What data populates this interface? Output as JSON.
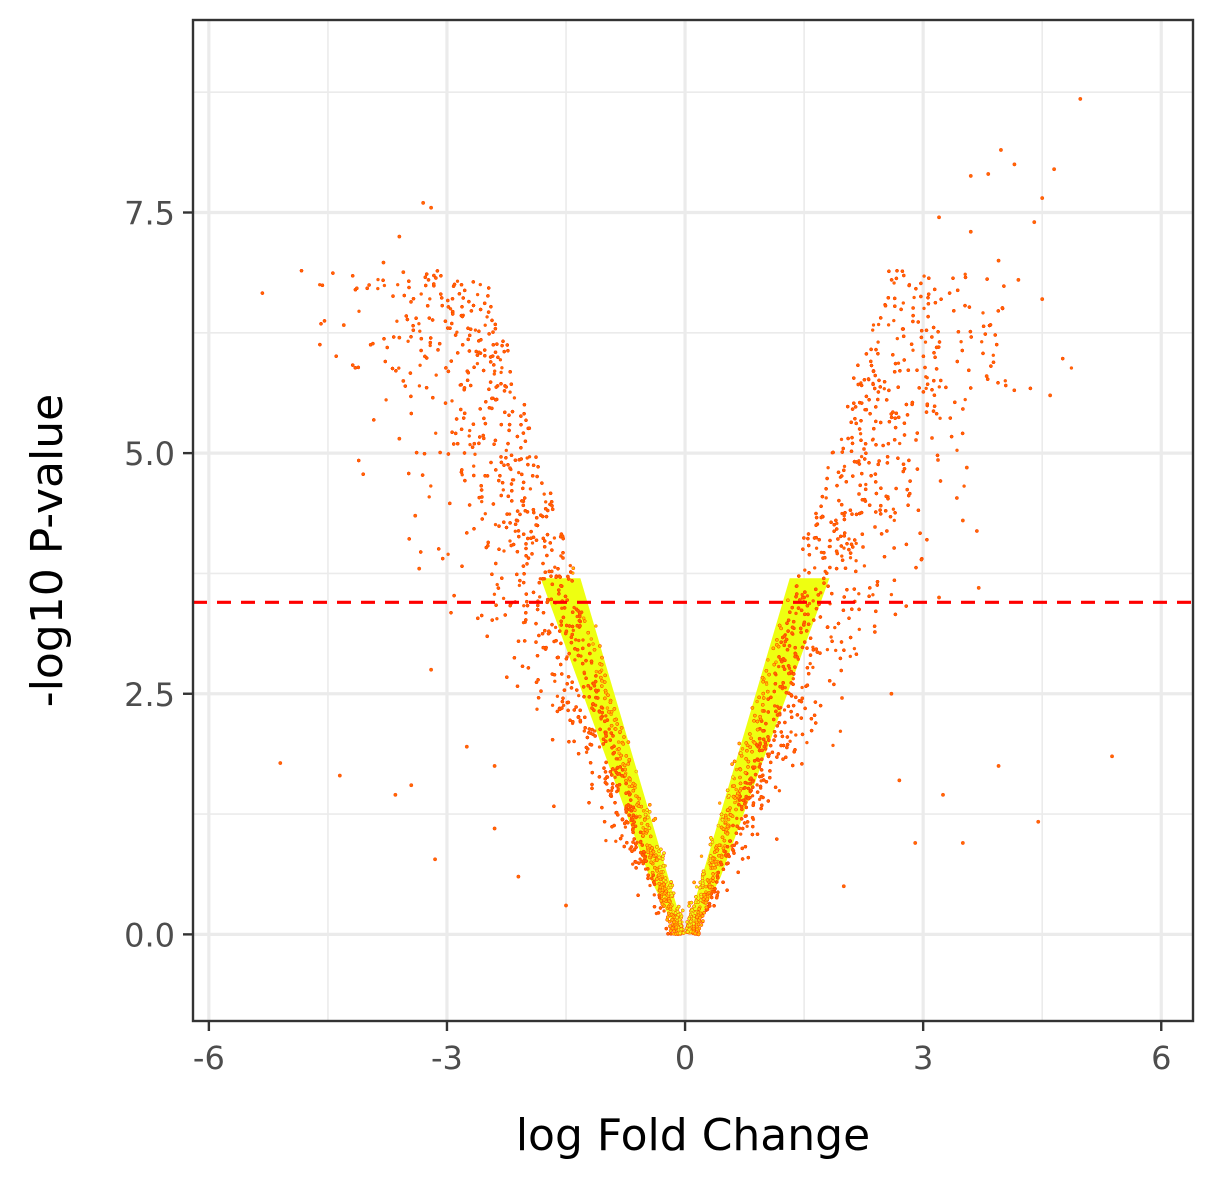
{
  "chart_data": {
    "type": "scatter",
    "title": "",
    "xlabel": "log Fold Change",
    "ylabel": "-log10 P-value",
    "xlim": [
      -6.2,
      6.4
    ],
    "ylim": [
      -0.9,
      9.5
    ],
    "x_ticks": [
      -6,
      -3,
      0,
      3,
      6
    ],
    "x_tick_labels": [
      "-6",
      "-3",
      "0",
      "3",
      "6"
    ],
    "y_ticks": [
      0.0,
      2.5,
      5.0,
      7.5
    ],
    "y_tick_labels": [
      "0.0",
      "2.5",
      "5.0",
      "7.5"
    ],
    "grid": true,
    "legend": "none",
    "threshold_line": {
      "y": 3.45,
      "style": "dashed",
      "color": "#ff0000"
    },
    "colors": {
      "low_density": "#ff6a00",
      "mid_density": "#ffc000",
      "high_density": "#eeff11",
      "point_outline": "#ff3300",
      "grid": "#ebebeb",
      "panel_border": "#333333"
    },
    "density_profile": {
      "description": "V-shaped volcano cloud, dense core |x| ≈ 0.37*y near origin, spread widening with y",
      "core_slope": 0.37,
      "left_max_y": 7.6,
      "right_max_y": 8.7
    },
    "series": [
      {
        "values_xy": [
          [
            -3.3,
            7.6
          ],
          [
            -3.2,
            7.55
          ],
          [
            -3.6,
            7.25
          ],
          [
            -3.8,
            6.98
          ],
          [
            -3.55,
            6.88
          ],
          [
            -4.3,
            6.33
          ],
          [
            -3.6,
            6.2
          ],
          [
            -3.55,
            5.75
          ],
          [
            -3.6,
            5.15
          ],
          [
            -3.4,
            4.35
          ],
          [
            -3.35,
            3.8
          ],
          [
            -3.2,
            2.75
          ],
          [
            -2.75,
            1.95
          ],
          [
            -5.1,
            1.78
          ],
          [
            -4.35,
            1.65
          ],
          [
            -3.65,
            1.45
          ],
          [
            -3.45,
            1.55
          ],
          [
            -3.15,
            0.78
          ],
          [
            -2.4,
            1.75
          ],
          [
            -2.4,
            1.1
          ],
          [
            4.98,
            8.68
          ],
          [
            3.98,
            8.15
          ],
          [
            4.15,
            8.0
          ],
          [
            4.65,
            7.95
          ],
          [
            3.6,
            7.88
          ],
          [
            3.82,
            7.9
          ],
          [
            4.5,
            7.65
          ],
          [
            4.4,
            7.4
          ],
          [
            3.2,
            7.45
          ],
          [
            3.6,
            7.3
          ],
          [
            3.95,
            7.0
          ],
          [
            4.5,
            6.6
          ],
          [
            4.2,
            6.8
          ],
          [
            4.6,
            5.6
          ],
          [
            3.8,
            5.8
          ],
          [
            3.55,
            4.85
          ],
          [
            3.5,
            4.3
          ],
          [
            3.7,
            3.6
          ],
          [
            3.2,
            3.5
          ],
          [
            3.95,
            1.75
          ],
          [
            5.38,
            1.85
          ],
          [
            4.45,
            1.17
          ],
          [
            3.5,
            0.95
          ],
          [
            3.25,
            1.45
          ],
          [
            2.9,
            0.95
          ],
          [
            2.7,
            1.6
          ],
          [
            2.6,
            2.5
          ],
          [
            -2.1,
            0.6
          ],
          [
            2.0,
            0.5
          ],
          [
            -1.5,
            0.3
          ]
        ],
        "name": ""
      }
    ]
  }
}
